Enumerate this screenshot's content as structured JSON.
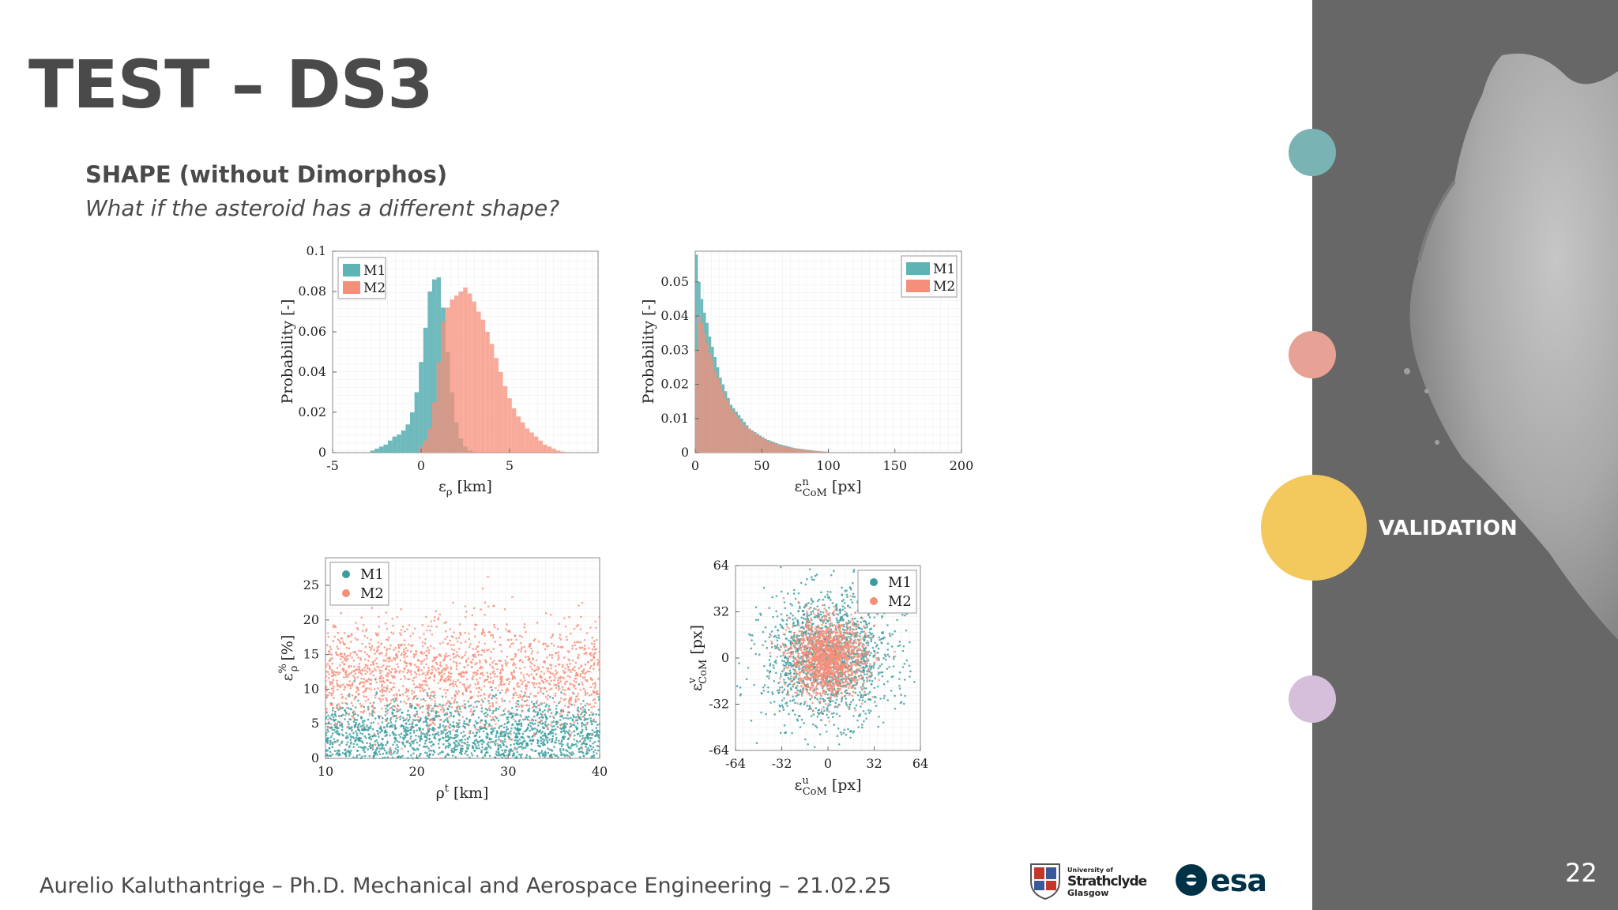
{
  "slide": {
    "title": "TEST – DS3",
    "subtitle": "SHAPE (without Dimorphos)",
    "question": "What if the asteroid has a different shape?",
    "footer": "Aurelio Kaluthantrige – Ph.D. Mechanical and Aerospace Engineering – 21.02.25",
    "page_number": "22",
    "nav_label": "VALIDATION",
    "logos": {
      "strathclyde": [
        "University of",
        "Strathclyde",
        "Glasgow"
      ],
      "esa": "esa"
    },
    "colors": {
      "m1": "#5eb3b5",
      "m2": "#f58f79",
      "sidebar": "#676767",
      "nav_active": "#f3c95d",
      "nav_purple": "#d6bfda"
    }
  },
  "chart_data": [
    {
      "type": "bar",
      "subtype": "histogram",
      "xlabel": "ε_ρ [km]",
      "ylabel": "Probability [-]",
      "xlim": [
        -5,
        10
      ],
      "ylim": [
        0,
        0.1
      ],
      "xticks": [
        "-5",
        "0",
        "5"
      ],
      "yticks": [
        "0",
        "0.02",
        "0.04",
        "0.06",
        "0.08",
        "0.1"
      ],
      "legend": "top-left",
      "series": [
        {
          "name": "M1",
          "color": "#5eb3b5",
          "x": [
            -2.75,
            -2.5,
            -2.25,
            -2.0,
            -1.75,
            -1.5,
            -1.25,
            -1.0,
            -0.75,
            -0.5,
            -0.25,
            0.0,
            0.25,
            0.5,
            0.75,
            1.0,
            1.25,
            1.5,
            1.75,
            2.0,
            2.25,
            2.5,
            2.75,
            3.0
          ],
          "values": [
            0.001,
            0.002,
            0.003,
            0.004,
            0.006,
            0.008,
            0.009,
            0.011,
            0.014,
            0.02,
            0.03,
            0.045,
            0.062,
            0.08,
            0.086,
            0.087,
            0.072,
            0.05,
            0.03,
            0.015,
            0.007,
            0.003,
            0.001,
            0.0005
          ]
        },
        {
          "name": "M2",
          "color": "#f58f79",
          "x": [
            0.0,
            0.25,
            0.5,
            0.75,
            1.0,
            1.25,
            1.5,
            1.75,
            2.0,
            2.25,
            2.5,
            2.75,
            3.0,
            3.25,
            3.5,
            3.75,
            4.0,
            4.25,
            4.5,
            4.75,
            5.0,
            5.25,
            5.5,
            5.75,
            6.0,
            6.25,
            6.5,
            6.75,
            7.0,
            7.25,
            7.5,
            7.75,
            8.0
          ],
          "values": [
            0.003,
            0.006,
            0.012,
            0.025,
            0.045,
            0.065,
            0.072,
            0.076,
            0.078,
            0.08,
            0.082,
            0.079,
            0.075,
            0.07,
            0.066,
            0.06,
            0.054,
            0.047,
            0.04,
            0.033,
            0.027,
            0.022,
            0.018,
            0.015,
            0.012,
            0.01,
            0.008,
            0.006,
            0.004,
            0.003,
            0.002,
            0.001,
            0.0005
          ]
        }
      ]
    },
    {
      "type": "bar",
      "subtype": "histogram",
      "xlabel": "ε^n_CoM [px]",
      "ylabel": "Probability [-]",
      "xlim": [
        0,
        200
      ],
      "ylim": [
        0,
        0.059
      ],
      "xticks": [
        "0",
        "50",
        "100",
        "150",
        "200"
      ],
      "yticks": [
        "0",
        "0.01",
        "0.02",
        "0.03",
        "0.04",
        "0.05"
      ],
      "legend": "top-right",
      "series": [
        {
          "name": "M1",
          "color": "#5eb3b5",
          "x": [
            1,
            3,
            5,
            7,
            9,
            11,
            13,
            15,
            17,
            19,
            21,
            23,
            25,
            27,
            29,
            31,
            33,
            35,
            37,
            39,
            41,
            43,
            45,
            47,
            49,
            51,
            53,
            55,
            57,
            59,
            61,
            63,
            65,
            67,
            69,
            71,
            73,
            75,
            77,
            79,
            81,
            83,
            85,
            87,
            89,
            91,
            93,
            95,
            97,
            99
          ],
          "values": [
            0.058,
            0.05,
            0.045,
            0.041,
            0.038,
            0.034,
            0.031,
            0.028,
            0.025,
            0.022,
            0.02,
            0.018,
            0.016,
            0.014,
            0.013,
            0.012,
            0.011,
            0.01,
            0.009,
            0.008,
            0.007,
            0.0065,
            0.006,
            0.0055,
            0.005,
            0.0045,
            0.004,
            0.0037,
            0.0034,
            0.0031,
            0.0028,
            0.0025,
            0.0023,
            0.0021,
            0.0019,
            0.0017,
            0.0015,
            0.0013,
            0.0012,
            0.0011,
            0.001,
            0.0009,
            0.0008,
            0.0007,
            0.0006,
            0.0005,
            0.0004,
            0.0004,
            0.0003,
            0.0003
          ]
        },
        {
          "name": "M2",
          "color": "#f58f79",
          "x": [
            1,
            3,
            5,
            7,
            9,
            11,
            13,
            15,
            17,
            19,
            21,
            23,
            25,
            27,
            29,
            31,
            33,
            35,
            37,
            39,
            41,
            43,
            45,
            47,
            49,
            51,
            53,
            55,
            57,
            59,
            61,
            63,
            65,
            67,
            69,
            71,
            73,
            75,
            77,
            79,
            81,
            83,
            85,
            87,
            89,
            91,
            93,
            95,
            97,
            99
          ],
          "values": [
            0.03,
            0.04,
            0.038,
            0.035,
            0.032,
            0.029,
            0.027,
            0.024,
            0.022,
            0.02,
            0.018,
            0.016,
            0.015,
            0.013,
            0.012,
            0.011,
            0.01,
            0.009,
            0.008,
            0.0075,
            0.007,
            0.0064,
            0.0058,
            0.0052,
            0.0047,
            0.0042,
            0.0038,
            0.0034,
            0.0031,
            0.0028,
            0.0025,
            0.0022,
            0.002,
            0.0018,
            0.0016,
            0.0014,
            0.0013,
            0.0012,
            0.0011,
            0.001,
            0.0009,
            0.0008,
            0.0007,
            0.0006,
            0.0005,
            0.0005,
            0.0004,
            0.0003,
            0.0003,
            0.0002
          ]
        }
      ]
    },
    {
      "type": "scatter",
      "xlabel": "ρ^t [km]",
      "ylabel": "ε^%_ρ [%]",
      "xlim": [
        10,
        40
      ],
      "ylim": [
        0,
        29
      ],
      "xticks": [
        "10",
        "20",
        "30",
        "40"
      ],
      "yticks": [
        "0",
        "5",
        "10",
        "15",
        "20",
        "25"
      ],
      "legend": "top-left",
      "series": [
        {
          "name": "M1",
          "color": "#3a9c9e",
          "distribution": {
            "x_range": [
              10,
              40
            ],
            "y_mean": 3.5,
            "y_sd": 2.5,
            "points": 1700
          }
        },
        {
          "name": "M2",
          "color": "#f58f79",
          "distribution": {
            "x_range": [
              10,
              40
            ],
            "y_mean": 12,
            "y_sd": 4,
            "points": 1700
          }
        }
      ]
    },
    {
      "type": "scatter",
      "xlabel": "ε^u_CoM [px]",
      "ylabel": "ε^v_CoM [px]",
      "xlim": [
        -64,
        64
      ],
      "ylim": [
        -64,
        64
      ],
      "xticks": [
        "-64",
        "-32",
        "0",
        "32",
        "64"
      ],
      "yticks": [
        "-64",
        "-32",
        "0",
        "32",
        "64"
      ],
      "legend": "top-right",
      "series": [
        {
          "name": "M1",
          "color": "#3a9c9e",
          "distribution": {
            "x_mean": 0,
            "y_mean": 0,
            "sd": 22,
            "points": 1600
          }
        },
        {
          "name": "M2",
          "color": "#f58f79",
          "distribution": {
            "x_mean": 0,
            "y_mean": 0,
            "sd": 13,
            "points": 1600
          }
        }
      ]
    }
  ]
}
